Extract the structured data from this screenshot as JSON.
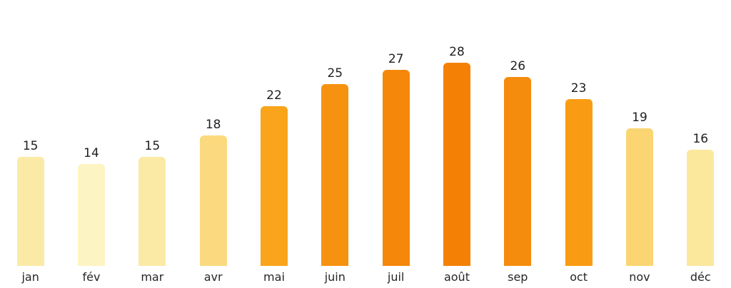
{
  "chart_data": {
    "type": "bar",
    "title": "",
    "xlabel": "",
    "ylabel": "",
    "categories": [
      "jan",
      "fév",
      "mar",
      "avr",
      "mai",
      "juin",
      "juil",
      "août",
      "sep",
      "oct",
      "nov",
      "déc"
    ],
    "values": [
      15,
      14,
      15,
      18,
      22,
      25,
      27,
      28,
      26,
      23,
      19,
      16
    ],
    "bar_colors": [
      "#FBEAA6",
      "#FDF4C3",
      "#FBEAA6",
      "#FBDA7F",
      "#F9A41B",
      "#F79110",
      "#F5870B",
      "#F48106",
      "#F68C0D",
      "#F99C13",
      "#FBD572",
      "#FBE89C"
    ],
    "ylim": [
      0,
      28
    ],
    "value_labels_shown": true,
    "grid": false,
    "legend": false,
    "axis_lines": false,
    "background": "#ffffff",
    "text_color": "#1f1f1f"
  }
}
